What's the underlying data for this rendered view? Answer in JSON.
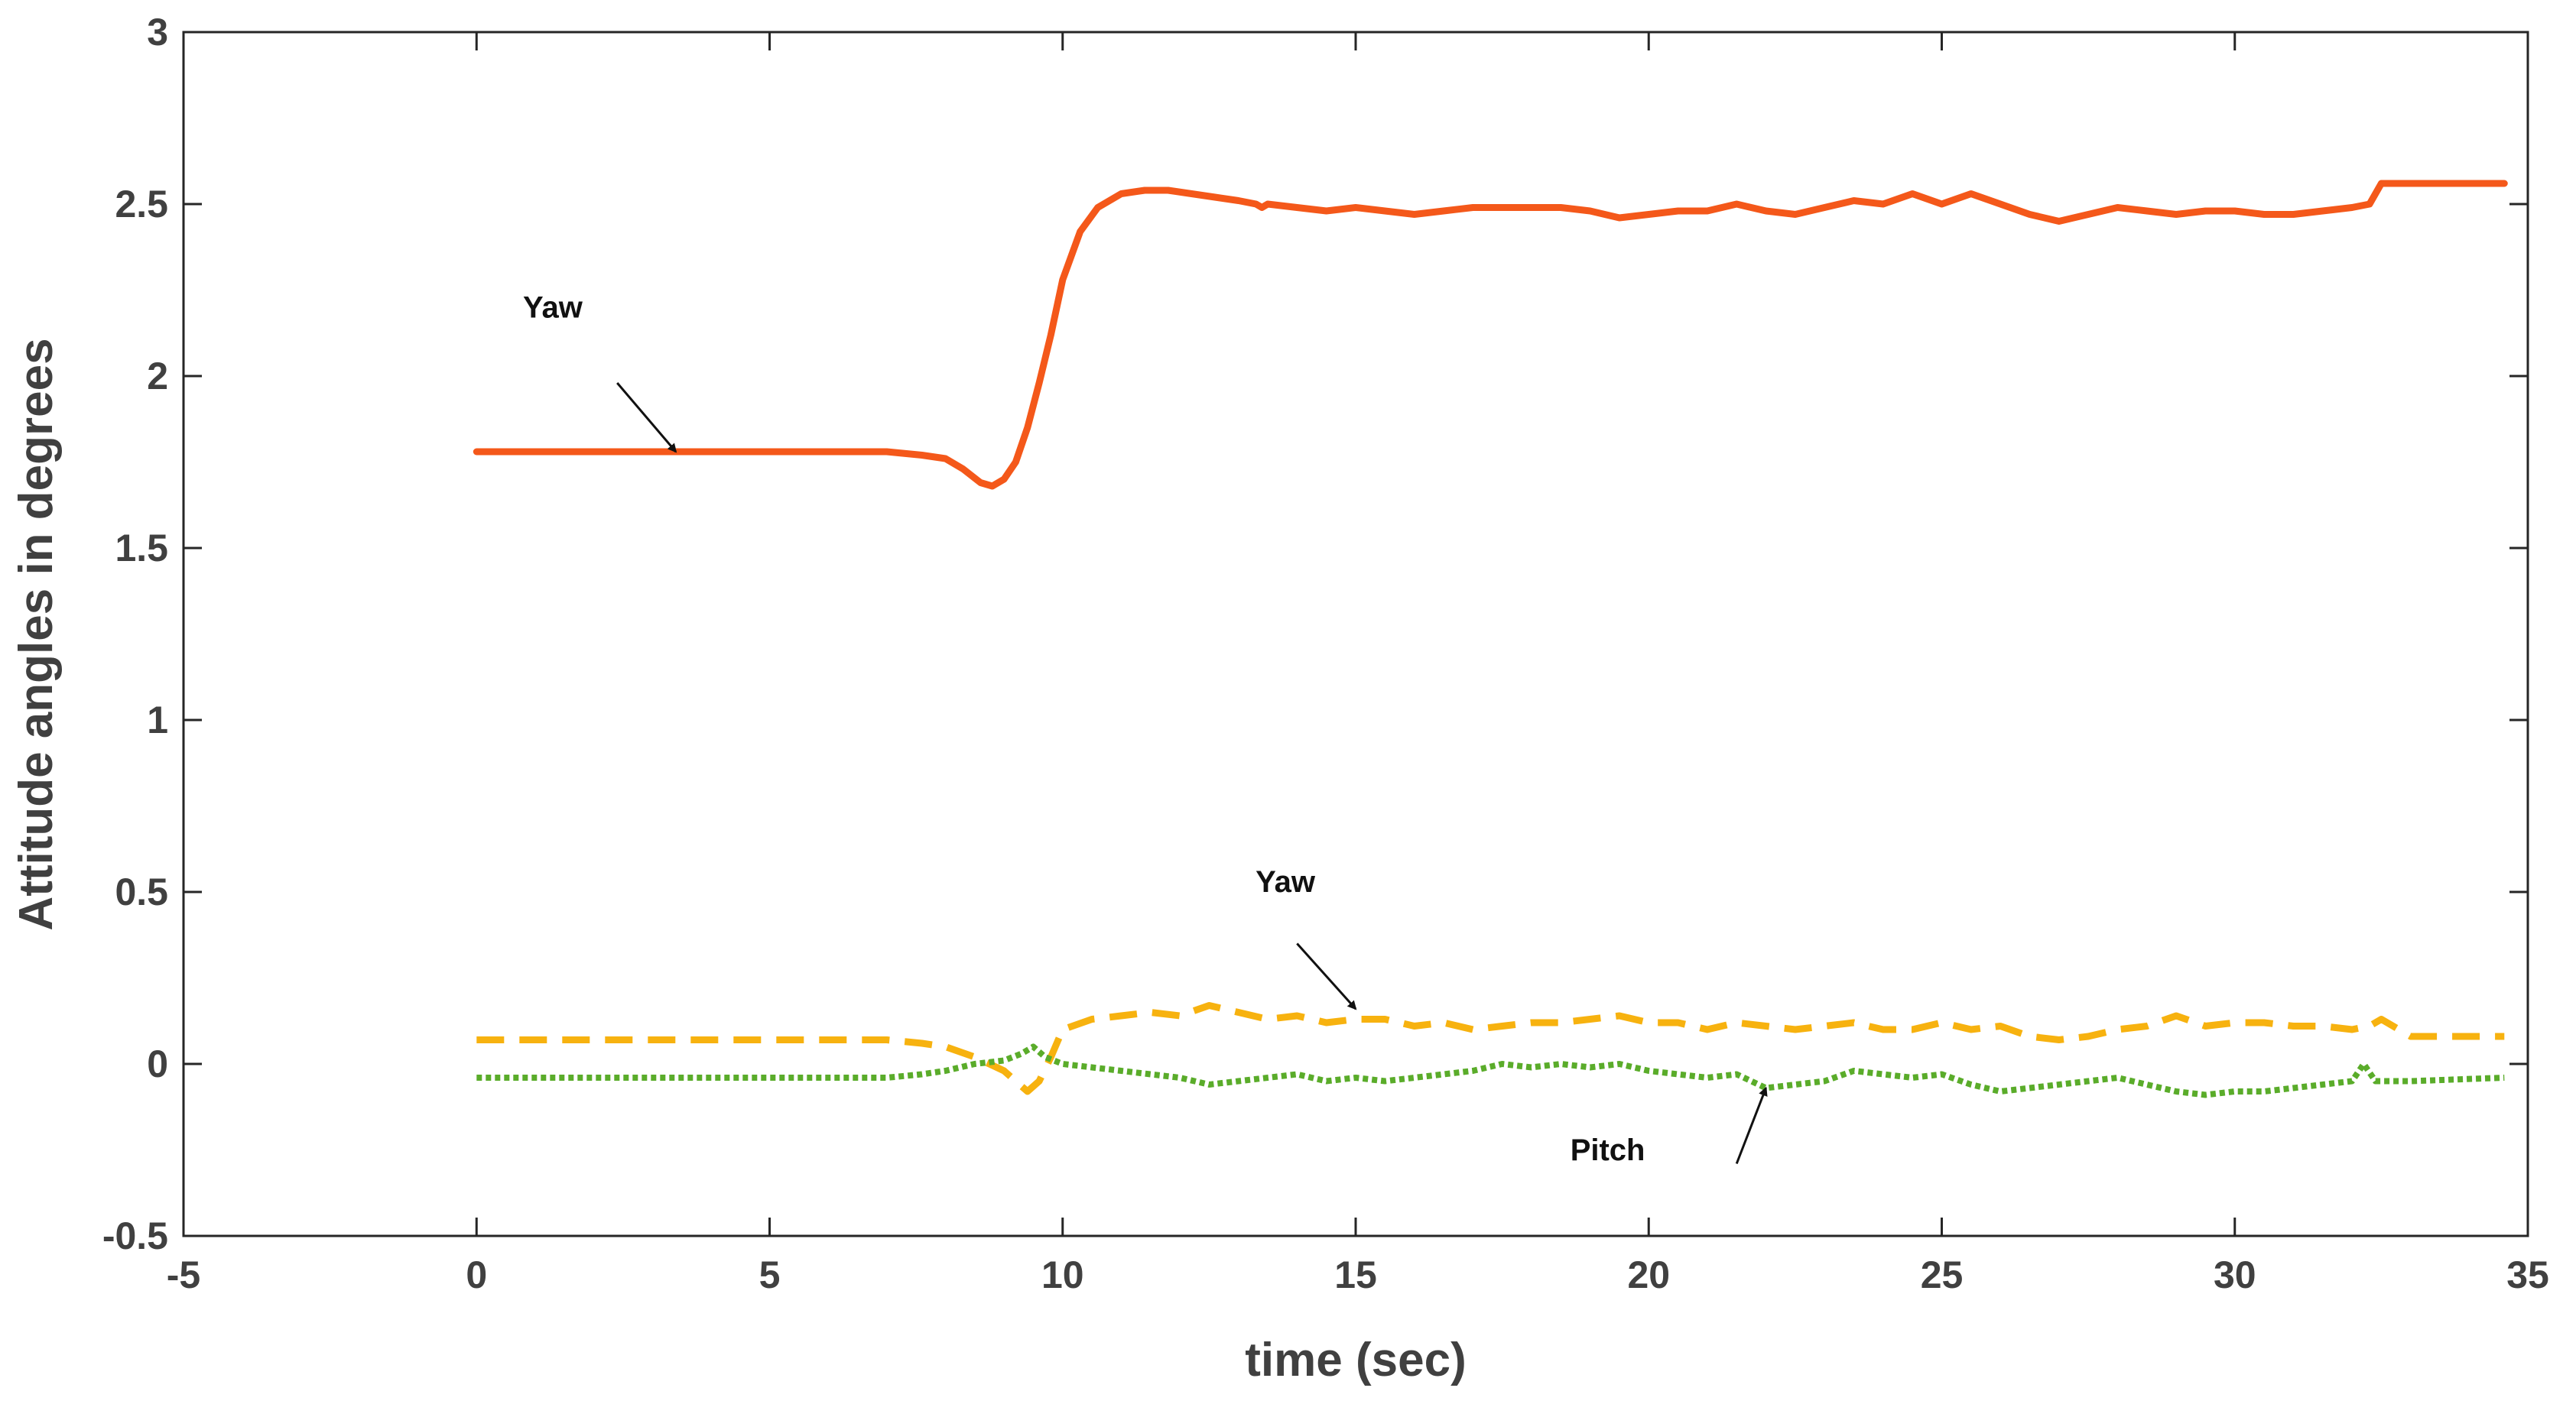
{
  "chart_data": {
    "type": "line",
    "title": "",
    "xlabel": "time (sec)",
    "ylabel": "Attitude angles in degrees",
    "xlim": [
      -5,
      35
    ],
    "ylim": [
      -0.5,
      3
    ],
    "xticks": [
      -5,
      0,
      5,
      10,
      15,
      20,
      25,
      30,
      35
    ],
    "yticks": [
      -0.5,
      0,
      0.5,
      1,
      1.5,
      2,
      2.5,
      3
    ],
    "xtick_labels": [
      "-5",
      "0",
      "5",
      "10",
      "15",
      "20",
      "25",
      "30",
      "35"
    ],
    "ytick_labels": [
      "-0.5",
      "0",
      "0.5",
      "1",
      "1.5",
      "2",
      "2.5",
      "3"
    ],
    "grid": false,
    "series": [
      {
        "name": "Yaw (solid)",
        "color": "#f4581a",
        "style": "solid",
        "x": [
          0,
          1,
          2,
          3,
          4,
          5,
          6,
          7,
          7.6,
          8.0,
          8.3,
          8.6,
          8.8,
          9.0,
          9.2,
          9.4,
          9.6,
          9.8,
          10.0,
          10.3,
          10.6,
          11.0,
          11.4,
          11.8,
          12.2,
          12.6,
          13.0,
          13.3,
          13.4,
          13.5,
          14.0,
          14.5,
          15.0,
          15.5,
          16.0,
          16.5,
          17.0,
          17.5,
          18.0,
          18.5,
          19.0,
          19.5,
          20.0,
          20.5,
          21.0,
          21.5,
          22.0,
          22.5,
          23.0,
          23.5,
          24.0,
          24.5,
          25.0,
          25.5,
          26.0,
          26.5,
          27.0,
          27.5,
          28.0,
          28.5,
          29.0,
          29.5,
          30.0,
          30.5,
          31.0,
          31.5,
          32.0,
          32.3,
          32.5,
          33.0,
          34.6
        ],
        "y": [
          1.78,
          1.78,
          1.78,
          1.78,
          1.78,
          1.78,
          1.78,
          1.78,
          1.77,
          1.76,
          1.73,
          1.69,
          1.68,
          1.7,
          1.75,
          1.85,
          1.98,
          2.12,
          2.28,
          2.42,
          2.49,
          2.53,
          2.54,
          2.54,
          2.53,
          2.52,
          2.51,
          2.5,
          2.49,
          2.5,
          2.49,
          2.48,
          2.49,
          2.48,
          2.47,
          2.48,
          2.49,
          2.49,
          2.49,
          2.49,
          2.48,
          2.46,
          2.47,
          2.48,
          2.48,
          2.5,
          2.48,
          2.47,
          2.49,
          2.51,
          2.5,
          2.53,
          2.5,
          2.53,
          2.5,
          2.47,
          2.45,
          2.47,
          2.49,
          2.48,
          2.47,
          2.48,
          2.48,
          2.47,
          2.47,
          2.48,
          2.49,
          2.5,
          2.56,
          2.56,
          2.56
        ]
      },
      {
        "name": "Yaw (dashed)",
        "color": "#f7b20f",
        "style": "dashed",
        "x": [
          0,
          1,
          2,
          3,
          4,
          5,
          6,
          7,
          7.6,
          8.0,
          8.5,
          9.0,
          9.4,
          9.6,
          9.8,
          10.0,
          10.5,
          11.0,
          11.5,
          12.0,
          12.5,
          13.0,
          13.5,
          14.0,
          14.5,
          15.0,
          15.5,
          16.0,
          16.5,
          17.0,
          17.5,
          18.0,
          18.5,
          19.0,
          19.5,
          20.0,
          20.5,
          21.0,
          21.5,
          22.0,
          22.5,
          23.0,
          23.5,
          24.0,
          24.5,
          25.0,
          25.5,
          26.0,
          26.5,
          27.0,
          27.5,
          28.0,
          28.5,
          29.0,
          29.5,
          30.0,
          30.5,
          31.0,
          31.5,
          32.0,
          32.3,
          32.5,
          33.0,
          34.6
        ],
        "y": [
          0.07,
          0.07,
          0.07,
          0.07,
          0.07,
          0.07,
          0.07,
          0.07,
          0.06,
          0.05,
          0.02,
          -0.02,
          -0.08,
          -0.05,
          0.02,
          0.1,
          0.13,
          0.14,
          0.15,
          0.14,
          0.17,
          0.15,
          0.13,
          0.14,
          0.12,
          0.13,
          0.13,
          0.11,
          0.12,
          0.1,
          0.11,
          0.12,
          0.12,
          0.13,
          0.14,
          0.12,
          0.12,
          0.1,
          0.12,
          0.11,
          0.1,
          0.11,
          0.12,
          0.1,
          0.1,
          0.12,
          0.1,
          0.11,
          0.08,
          0.07,
          0.08,
          0.1,
          0.11,
          0.14,
          0.11,
          0.12,
          0.12,
          0.11,
          0.11,
          0.1,
          0.11,
          0.13,
          0.08,
          0.08
        ]
      },
      {
        "name": "Pitch",
        "color": "#5aac2a",
        "style": "dotted",
        "x": [
          0,
          1,
          2,
          3,
          4,
          5,
          6,
          7,
          7.6,
          8.0,
          8.5,
          9.0,
          9.3,
          9.5,
          9.7,
          10.0,
          10.5,
          11.0,
          11.5,
          12.0,
          12.5,
          13.0,
          13.5,
          14.0,
          14.5,
          15.0,
          15.5,
          16.0,
          16.5,
          17.0,
          17.5,
          18.0,
          18.5,
          19.0,
          19.5,
          20.0,
          20.5,
          21.0,
          21.5,
          22.0,
          22.5,
          23.0,
          23.5,
          24.0,
          24.5,
          25.0,
          25.5,
          26.0,
          26.5,
          27.0,
          27.5,
          28.0,
          28.5,
          29.0,
          29.5,
          30.0,
          30.5,
          31.0,
          31.5,
          32.0,
          32.2,
          32.4,
          33.0,
          34.6
        ],
        "y": [
          -0.04,
          -0.04,
          -0.04,
          -0.04,
          -0.04,
          -0.04,
          -0.04,
          -0.04,
          -0.03,
          -0.02,
          0.0,
          0.01,
          0.03,
          0.05,
          0.02,
          0.0,
          -0.01,
          -0.02,
          -0.03,
          -0.04,
          -0.06,
          -0.05,
          -0.04,
          -0.03,
          -0.05,
          -0.04,
          -0.05,
          -0.04,
          -0.03,
          -0.02,
          0.0,
          -0.01,
          0.0,
          -0.01,
          0.0,
          -0.02,
          -0.03,
          -0.04,
          -0.03,
          -0.07,
          -0.06,
          -0.05,
          -0.02,
          -0.03,
          -0.04,
          -0.03,
          -0.06,
          -0.08,
          -0.07,
          -0.06,
          -0.05,
          -0.04,
          -0.06,
          -0.08,
          -0.09,
          -0.08,
          -0.08,
          -0.07,
          -0.06,
          -0.05,
          0.0,
          -0.05,
          -0.05,
          -0.04
        ]
      }
    ],
    "annotations": [
      {
        "text": "Yaw",
        "text_at": [
          1.3,
          2.17
        ],
        "arrow_from": [
          2.4,
          1.98
        ],
        "arrow_to": [
          3.4,
          1.78
        ]
      },
      {
        "text": "Yaw",
        "text_at": [
          13.8,
          0.5
        ],
        "arrow_from": [
          14.0,
          0.35
        ],
        "arrow_to": [
          15.0,
          0.16
        ]
      },
      {
        "text": "Pitch",
        "text_at": [
          19.3,
          -0.28
        ],
        "arrow_from": [
          21.5,
          -0.29
        ],
        "arrow_to": [
          22.0,
          -0.07
        ]
      }
    ]
  }
}
